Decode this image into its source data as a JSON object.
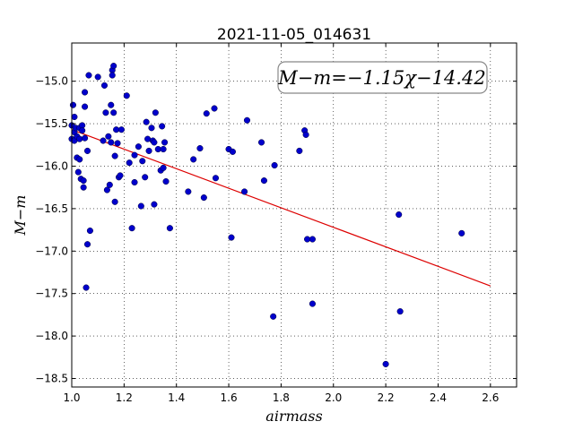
{
  "chart_data": {
    "type": "scatter",
    "title": "2021-11-05_014631",
    "xlabel": "airmass",
    "ylabel": "M−m",
    "xlim": [
      1.0,
      2.7
    ],
    "ylim": [
      -18.6,
      -14.55
    ],
    "y_inverted": true,
    "grid": true,
    "x_ticks": [
      "1.0",
      "1.2",
      "1.4",
      "1.6",
      "1.8",
      "2.0",
      "2.2",
      "2.4",
      "2.6"
    ],
    "y_ticks": [
      "−15.0",
      "−15.5",
      "−16.0",
      "−16.5",
      "−17.0",
      "−17.5",
      "−18.0",
      "−18.5"
    ],
    "annotation": "M−m=−1.15χ−14.42",
    "marker_color": "#0000cc",
    "fit_color": "#dd0000",
    "fit": {
      "slope": -1.15,
      "intercept": -14.42,
      "x_range": [
        1.0,
        2.6
      ]
    },
    "points": [
      {
        "x": 1.0,
        "y": -15.52
      },
      {
        "x": 1.0,
        "y": -15.68
      },
      {
        "x": 1.005,
        "y": -15.28
      },
      {
        "x": 1.01,
        "y": -15.42
      },
      {
        "x": 1.01,
        "y": -15.6
      },
      {
        "x": 1.01,
        "y": -15.7
      },
      {
        "x": 1.015,
        "y": -15.55
      },
      {
        "x": 1.02,
        "y": -15.65
      },
      {
        "x": 1.02,
        "y": -15.9
      },
      {
        "x": 1.025,
        "y": -16.07
      },
      {
        "x": 1.03,
        "y": -15.55
      },
      {
        "x": 1.03,
        "y": -15.68
      },
      {
        "x": 1.03,
        "y": -15.92
      },
      {
        "x": 1.035,
        "y": -16.15
      },
      {
        "x": 1.04,
        "y": -15.52
      },
      {
        "x": 1.04,
        "y": -15.58
      },
      {
        "x": 1.045,
        "y": -16.17
      },
      {
        "x": 1.045,
        "y": -16.25
      },
      {
        "x": 1.05,
        "y": -15.13
      },
      {
        "x": 1.05,
        "y": -15.3
      },
      {
        "x": 1.05,
        "y": -15.67
      },
      {
        "x": 1.055,
        "y": -17.43
      },
      {
        "x": 1.06,
        "y": -15.82
      },
      {
        "x": 1.06,
        "y": -16.92
      },
      {
        "x": 1.065,
        "y": -14.93
      },
      {
        "x": 1.07,
        "y": -16.76
      },
      {
        "x": 1.1,
        "y": -14.95
      },
      {
        "x": 1.12,
        "y": -15.7
      },
      {
        "x": 1.125,
        "y": -15.05
      },
      {
        "x": 1.13,
        "y": -15.37
      },
      {
        "x": 1.135,
        "y": -16.28
      },
      {
        "x": 1.14,
        "y": -15.65
      },
      {
        "x": 1.145,
        "y": -16.22
      },
      {
        "x": 1.15,
        "y": -15.28
      },
      {
        "x": 1.15,
        "y": -15.72
      },
      {
        "x": 1.155,
        "y": -14.87
      },
      {
        "x": 1.155,
        "y": -14.93
      },
      {
        "x": 1.16,
        "y": -14.82
      },
      {
        "x": 1.16,
        "y": -15.37
      },
      {
        "x": 1.165,
        "y": -15.88
      },
      {
        "x": 1.165,
        "y": -16.42
      },
      {
        "x": 1.17,
        "y": -15.57
      },
      {
        "x": 1.175,
        "y": -15.73
      },
      {
        "x": 1.18,
        "y": -16.13
      },
      {
        "x": 1.185,
        "y": -16.11
      },
      {
        "x": 1.19,
        "y": -15.57
      },
      {
        "x": 1.21,
        "y": -15.17
      },
      {
        "x": 1.22,
        "y": -15.96
      },
      {
        "x": 1.23,
        "y": -16.73
      },
      {
        "x": 1.24,
        "y": -15.87
      },
      {
        "x": 1.24,
        "y": -16.19
      },
      {
        "x": 1.255,
        "y": -15.77
      },
      {
        "x": 1.265,
        "y": -16.47
      },
      {
        "x": 1.27,
        "y": -15.94
      },
      {
        "x": 1.28,
        "y": -16.13
      },
      {
        "x": 1.285,
        "y": -15.48
      },
      {
        "x": 1.29,
        "y": -15.68
      },
      {
        "x": 1.295,
        "y": -15.82
      },
      {
        "x": 1.305,
        "y": -15.55
      },
      {
        "x": 1.31,
        "y": -15.7
      },
      {
        "x": 1.315,
        "y": -15.72
      },
      {
        "x": 1.315,
        "y": -16.45
      },
      {
        "x": 1.32,
        "y": -15.37
      },
      {
        "x": 1.33,
        "y": -15.8
      },
      {
        "x": 1.34,
        "y": -16.05
      },
      {
        "x": 1.345,
        "y": -15.53
      },
      {
        "x": 1.35,
        "y": -15.8
      },
      {
        "x": 1.35,
        "y": -16.02
      },
      {
        "x": 1.355,
        "y": -15.72
      },
      {
        "x": 1.36,
        "y": -16.18
      },
      {
        "x": 1.375,
        "y": -16.73
      },
      {
        "x": 1.445,
        "y": -16.3
      },
      {
        "x": 1.465,
        "y": -15.92
      },
      {
        "x": 1.49,
        "y": -15.79
      },
      {
        "x": 1.505,
        "y": -16.37
      },
      {
        "x": 1.515,
        "y": -15.38
      },
      {
        "x": 1.545,
        "y": -15.32
      },
      {
        "x": 1.55,
        "y": -16.14
      },
      {
        "x": 1.6,
        "y": -15.8
      },
      {
        "x": 1.61,
        "y": -16.84
      },
      {
        "x": 1.615,
        "y": -15.83
      },
      {
        "x": 1.66,
        "y": -16.3
      },
      {
        "x": 1.67,
        "y": -15.46
      },
      {
        "x": 1.725,
        "y": -15.72
      },
      {
        "x": 1.735,
        "y": -16.17
      },
      {
        "x": 1.77,
        "y": -17.77
      },
      {
        "x": 1.775,
        "y": -15.99
      },
      {
        "x": 1.87,
        "y": -15.82
      },
      {
        "x": 1.89,
        "y": -15.58
      },
      {
        "x": 1.895,
        "y": -15.63
      },
      {
        "x": 1.9,
        "y": -16.86
      },
      {
        "x": 1.92,
        "y": -16.86
      },
      {
        "x": 1.92,
        "y": -17.62
      },
      {
        "x": 2.2,
        "y": -18.33
      },
      {
        "x": 2.25,
        "y": -16.57
      },
      {
        "x": 2.255,
        "y": -17.71
      },
      {
        "x": 2.49,
        "y": -16.79
      }
    ]
  }
}
